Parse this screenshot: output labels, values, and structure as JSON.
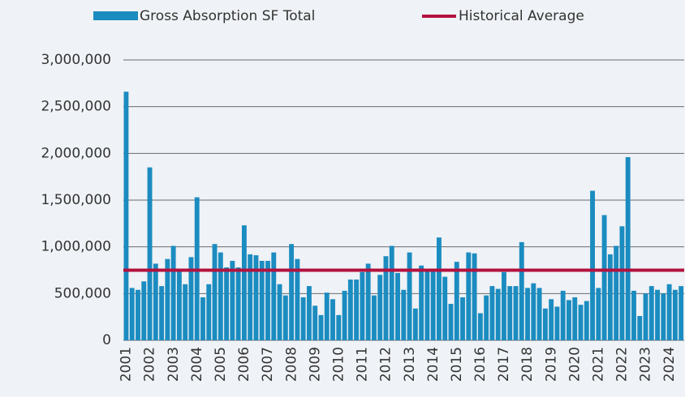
{
  "chart_data": {
    "type": "bar",
    "categories": [
      "2001",
      null,
      null,
      null,
      "2002",
      null,
      null,
      null,
      "2003",
      null,
      null,
      null,
      "2004",
      null,
      null,
      null,
      "2005",
      null,
      null,
      null,
      "2006",
      null,
      null,
      null,
      "2007",
      null,
      null,
      null,
      "2008",
      null,
      null,
      null,
      "2009",
      null,
      null,
      null,
      "2010",
      null,
      null,
      null,
      "2011",
      null,
      null,
      null,
      "2012",
      null,
      null,
      null,
      "2013",
      null,
      null,
      null,
      "2014",
      null,
      null,
      null,
      "2015",
      null,
      null,
      null,
      "2016",
      null,
      null,
      null,
      "2017",
      null,
      null,
      null,
      "2018",
      null,
      null,
      null,
      "2019",
      null,
      null,
      null,
      "2020",
      null,
      null,
      null,
      "2021",
      null,
      null,
      null,
      "2022",
      null,
      null,
      null,
      "2023",
      null,
      null,
      null,
      "2024",
      null,
      null
    ],
    "series": [
      {
        "name": "Gross Absorption SF Total",
        "color": "#1b8cc0",
        "type": "bar",
        "values": [
          2660000,
          560000,
          540000,
          630000,
          1850000,
          820000,
          580000,
          870000,
          1010000,
          760000,
          600000,
          890000,
          1530000,
          460000,
          600000,
          1030000,
          940000,
          780000,
          850000,
          780000,
          1230000,
          920000,
          910000,
          850000,
          850000,
          940000,
          600000,
          480000,
          1030000,
          870000,
          460000,
          580000,
          370000,
          270000,
          510000,
          440000,
          270000,
          530000,
          650000,
          650000,
          730000,
          820000,
          480000,
          700000,
          900000,
          1010000,
          720000,
          540000,
          940000,
          340000,
          800000,
          750000,
          750000,
          1100000,
          680000,
          390000,
          840000,
          460000,
          940000,
          930000,
          290000,
          480000,
          580000,
          550000,
          730000,
          580000,
          580000,
          1050000,
          560000,
          610000,
          560000,
          340000,
          440000,
          360000,
          530000,
          430000,
          460000,
          380000,
          420000,
          1600000,
          560000,
          1340000,
          920000,
          1010000,
          1220000,
          1960000,
          530000,
          260000,
          500000,
          580000,
          540000,
          500000,
          600000,
          540000,
          580000
        ]
      },
      {
        "name": "Historical Average",
        "color": "#b3123e",
        "type": "line",
        "values": [
          750000,
          750000,
          750000,
          750000,
          750000,
          750000,
          750000,
          750000,
          750000,
          750000,
          750000,
          750000,
          750000,
          750000,
          750000,
          750000,
          750000,
          750000,
          750000,
          750000,
          750000,
          750000,
          750000,
          750000,
          750000,
          750000,
          750000,
          750000,
          750000,
          750000,
          750000,
          750000,
          750000,
          750000,
          750000,
          750000,
          750000,
          750000,
          750000,
          750000,
          750000,
          750000,
          750000,
          750000,
          750000,
          750000,
          750000,
          750000,
          750000,
          750000,
          750000,
          750000,
          750000,
          750000,
          750000,
          750000,
          750000,
          750000,
          750000,
          750000,
          750000,
          750000,
          750000,
          750000,
          750000,
          750000,
          750000,
          750000,
          750000,
          750000,
          750000,
          750000,
          750000,
          750000,
          750000,
          750000,
          750000,
          750000,
          750000,
          750000,
          750000,
          750000,
          750000,
          750000,
          750000,
          750000,
          750000,
          750000,
          750000,
          750000,
          750000,
          750000,
          750000,
          750000,
          750000
        ]
      }
    ],
    "ylim": [
      0,
      3000000
    ],
    "yticks": [
      0,
      {
        "value": 500000,
        "label": "500,000"
      },
      {
        "value": 1000000,
        "label": "1,000,000"
      },
      {
        "value": 1500000,
        "label": "1,500,000"
      },
      {
        "value": 2000000,
        "label": "2,000,000"
      },
      {
        "value": 2500000,
        "label": "2,500,000"
      },
      {
        "value": 3000000,
        "label": "3,000,000"
      }
    ],
    "grid": true,
    "legend": "top"
  }
}
